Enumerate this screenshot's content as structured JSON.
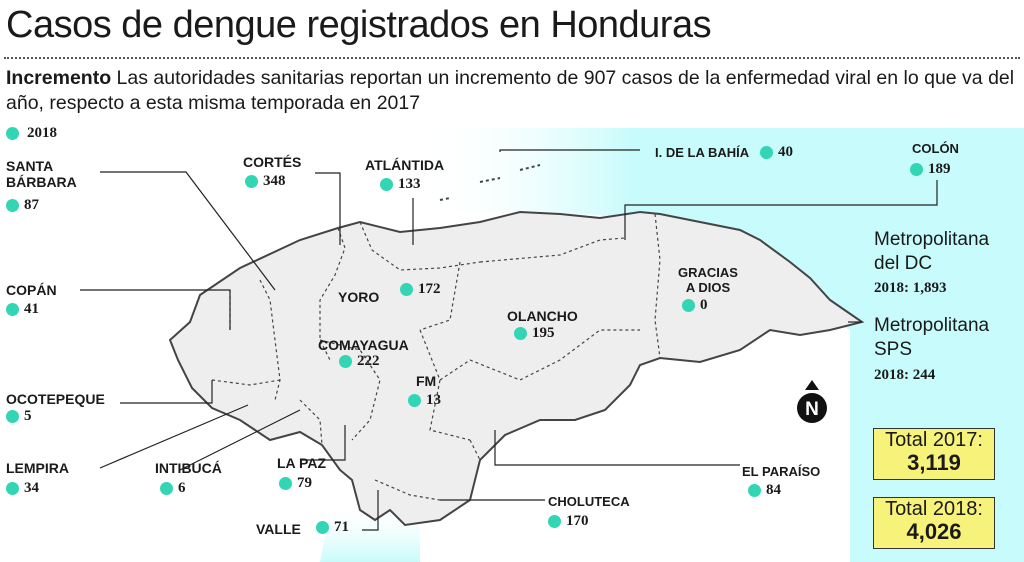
{
  "title": "Casos de dengue registrados en Honduras",
  "intro": {
    "lead": "Incremento",
    "text": " Las autoridades sanitarias reportan un incremento de 907 casos de la enfermedad viral en lo que va del año, respecto a esta misma temporada en 2017"
  },
  "legend": {
    "label": "2018"
  },
  "colors": {
    "marker": "#33d6b4",
    "sea": "#c8fbfb",
    "land": "#eeeeee",
    "highlight": "#f7f27a"
  },
  "departments": {
    "santa_barbara": {
      "name_1": "SANTA",
      "name_2": "BÁRBARA",
      "value": "87"
    },
    "cortes": {
      "name": "CORTÉS",
      "value": "348"
    },
    "atlantida": {
      "name": "ATLÁNTIDA",
      "value": "133"
    },
    "islas": {
      "name": "I. DE LA BAHÍA",
      "value": "40"
    },
    "colon": {
      "name": "COLÓN",
      "value": "189"
    },
    "copan": {
      "name": "COPÁN",
      "value": "41"
    },
    "yoro": {
      "name": "YORO",
      "value": "172"
    },
    "gracias": {
      "name_1": "GRACIAS",
      "name_2": "A DIOS",
      "value": "0"
    },
    "olancho": {
      "name": "OLANCHO",
      "value": "195"
    },
    "comayagua": {
      "name": "COMAYAGUA",
      "value": "222"
    },
    "fm": {
      "name": "FM",
      "value": "13"
    },
    "ocotepeque": {
      "name": "OCOTEPEQUE",
      "value": "5"
    },
    "lempira": {
      "name": "LEMPIRA",
      "value": "34"
    },
    "intibuca": {
      "name": "INTIBUCÁ",
      "value": "6"
    },
    "la_paz": {
      "name": "LA PAZ",
      "value": "79"
    },
    "valle": {
      "name": "VALLE",
      "value": "71"
    },
    "choluteca": {
      "name": "CHOLUTECA",
      "value": "170"
    },
    "el_paraiso": {
      "name": "EL PARAÍSO",
      "value": "84"
    }
  },
  "metro": {
    "dc": {
      "name_1": "Metropolitana",
      "name_2": "del DC",
      "value": "2018: 1,893"
    },
    "sps": {
      "name_1": "Metropolitana",
      "name_2": "SPS",
      "value": "2018: 244"
    }
  },
  "compass": {
    "label": "N"
  },
  "totals": {
    "t2017": {
      "label": "Total 2017:",
      "value": "3,119"
    },
    "t2018": {
      "label": "Total 2018:",
      "value": "4,026"
    }
  }
}
